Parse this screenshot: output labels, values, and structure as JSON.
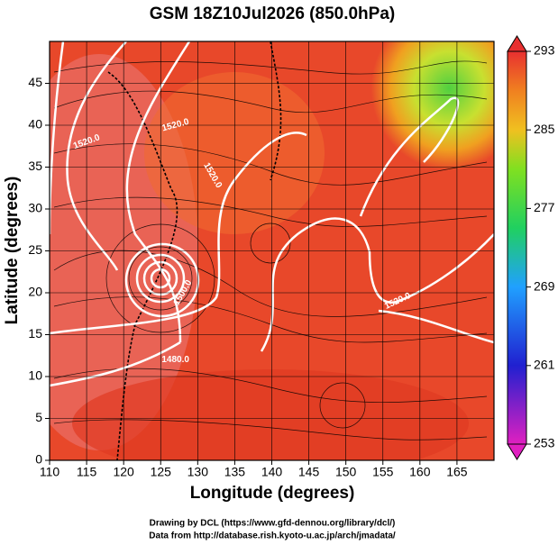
{
  "chart_data": {
    "type": "map",
    "title": "GSM 18Z10Jul2026 (850.0hPa)",
    "xlabel": "Longitude (degrees)",
    "ylabel": "Latitude  (degrees)",
    "xlim": [
      110,
      170
    ],
    "xticks": [
      110,
      115,
      120,
      125,
      130,
      135,
      140,
      145,
      150,
      155,
      160,
      165
    ],
    "ylim": [
      0,
      50
    ],
    "yticks": [
      0,
      5,
      10,
      15,
      20,
      25,
      30,
      35,
      40,
      45
    ],
    "grid": true,
    "colorbar": {
      "lim": [
        253,
        293
      ],
      "ticks": [
        253,
        261,
        269,
        277,
        285,
        293
      ]
    },
    "contour_labels": [
      "1520.0",
      "1520.0",
      "1520.0",
      "1500.0",
      "1480.0",
      "1520.0"
    ],
    "credits": [
      "Drawing by DCL (https://www.gfd-dennou.org/library/dcl/)",
      "Data from http://database.rish.kyoto-u.ac.jp/arch/jmadata/"
    ]
  }
}
